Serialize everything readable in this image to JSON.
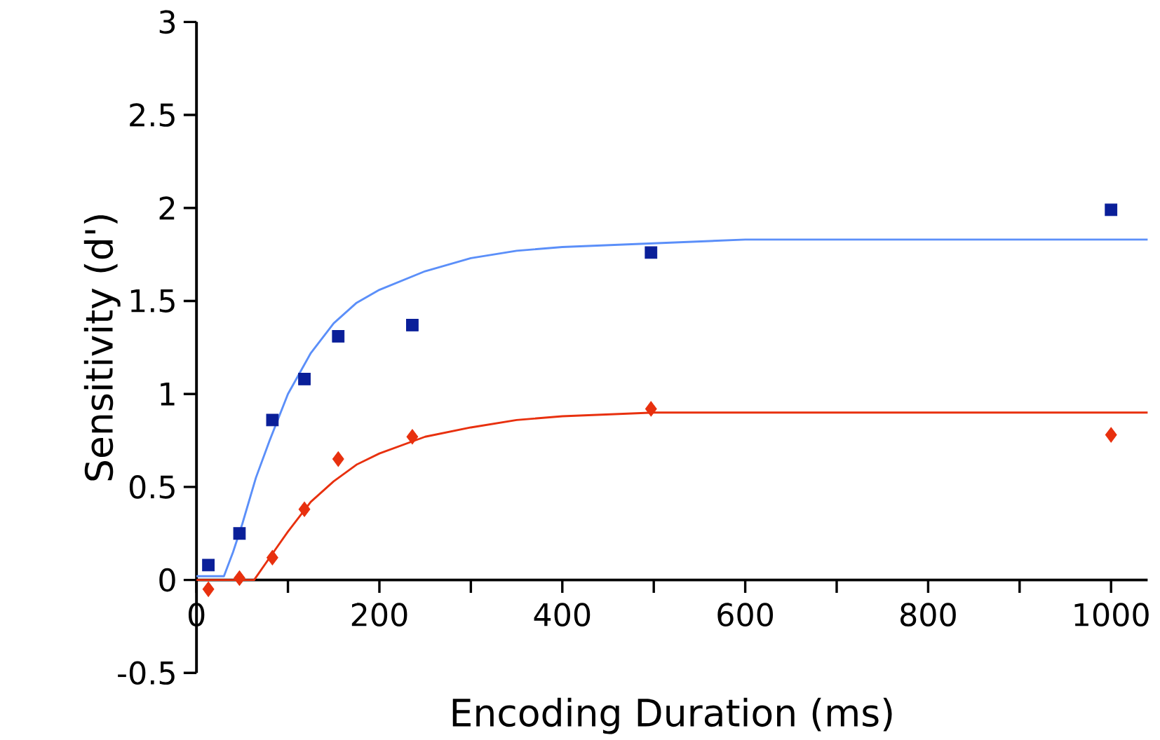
{
  "chart_data": {
    "type": "scatter",
    "xlabel": "Encoding Duration (ms)",
    "ylabel": "Sensitivity (d')",
    "xlim": [
      0,
      1040
    ],
    "ylim": [
      -0.5,
      3
    ],
    "xticks": [
      0,
      {
        "value": 100,
        "label": null
      },
      200,
      {
        "value": 300,
        "label": null
      },
      400,
      {
        "value": 500,
        "label": null
      },
      600,
      {
        "value": 700,
        "label": null
      },
      800,
      {
        "value": 900,
        "label": null
      },
      1000
    ],
    "yticks": [
      -0.5,
      0,
      0.5,
      1,
      1.5,
      2,
      2.5,
      3
    ],
    "series": [
      {
        "type": "line",
        "color": "#5b8ff9",
        "marker": "none",
        "x": [
          0,
          30,
          40,
          50,
          65,
          80,
          100,
          125,
          150,
          175,
          200,
          250,
          300,
          350,
          400,
          500,
          600,
          1040
        ],
        "values": [
          0.02,
          0.02,
          0.15,
          0.3,
          0.55,
          0.75,
          1.0,
          1.22,
          1.38,
          1.49,
          1.56,
          1.66,
          1.73,
          1.77,
          1.79,
          1.81,
          1.83,
          1.83
        ]
      },
      {
        "type": "line",
        "color": "#e8300e",
        "marker": "none",
        "x": [
          0,
          63,
          80,
          100,
          125,
          150,
          175,
          200,
          250,
          300,
          350,
          400,
          500,
          1040
        ],
        "values": [
          0,
          0,
          0.12,
          0.26,
          0.42,
          0.53,
          0.62,
          0.68,
          0.77,
          0.82,
          0.86,
          0.88,
          0.9,
          0.9
        ]
      },
      {
        "color": "#0a1f99",
        "marker": "square",
        "x": [
          13,
          47,
          83,
          118,
          155,
          236,
          497,
          1000
        ],
        "values": [
          0.08,
          0.25,
          0.86,
          1.08,
          1.31,
          1.37,
          1.76,
          1.99
        ]
      },
      {
        "color": "#e8300e",
        "marker": "diamond",
        "x": [
          13,
          47,
          83,
          118,
          155,
          236,
          497,
          1000
        ],
        "values": [
          -0.05,
          0.01,
          0.12,
          0.38,
          0.65,
          0.77,
          0.92,
          0.78
        ]
      }
    ]
  }
}
